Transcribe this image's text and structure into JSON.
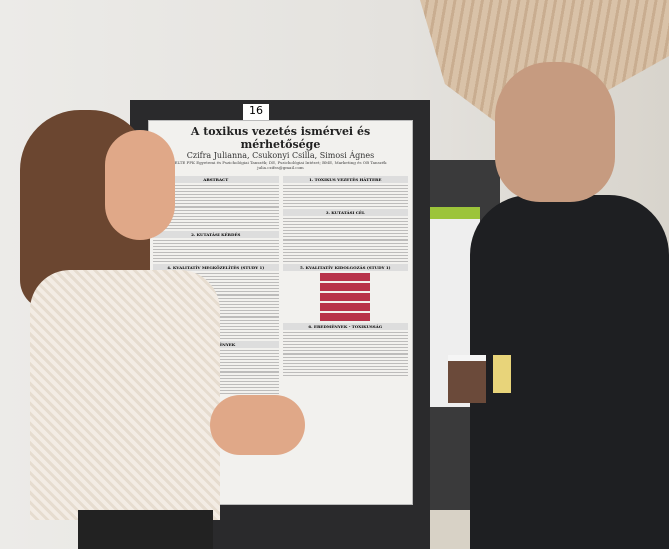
{
  "scene": "poster-session",
  "poster": {
    "number": "16",
    "title": "A toxikus vezetés ismérvei és mérhetősége",
    "authors": "Czifra Julianna, Csukonyi Csilla, Simosi Ágnes",
    "affiliation": "ELTE PPK Egyetemi és Pszichológiai Tanszék; DE, Pszichológiai Intézet; BME, Marketing és OB Tanszék",
    "email": "julia.czifra@gmail.com",
    "sections_left": [
      "ABSTRACT",
      "2. KUTATÁSI KÉRDÉS",
      "4. KVALITATÍV MEGKÖZELÍTÉS (STUDY 1)",
      "6. EREDMÉNYEK"
    ],
    "sections_right": [
      "1. TOXIKUS VEZETÉS HÁTTERE",
      "3. KUTATÁSI CÉL",
      "5. KVALITATÍV KIDOLGOZÁS (STUDY 1)",
      "6. EREDMÉNYEK - TOXIKUSSÁG"
    ],
    "accent": "#b8334a"
  },
  "colors": {
    "board": "#2a2a2c",
    "poster2_accent": "#9cc43a"
  }
}
